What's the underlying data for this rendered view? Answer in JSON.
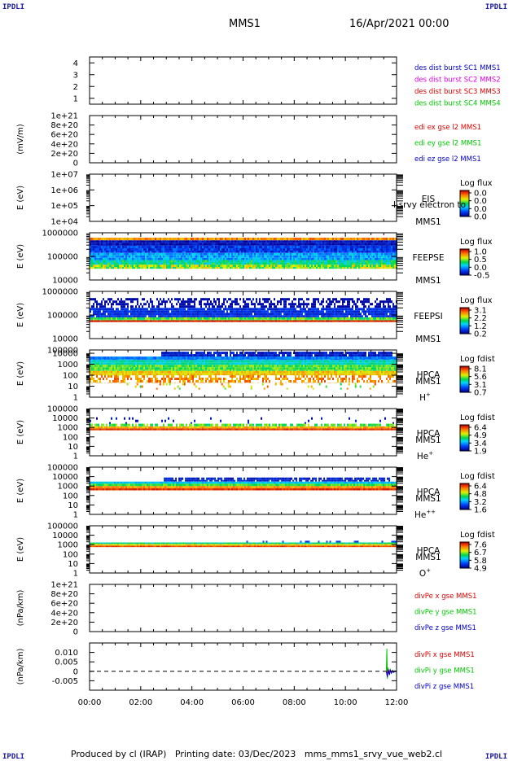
{
  "header": {
    "corner_label": "IPDLI",
    "mission": "MMS1",
    "date": "16/Apr/2021 00:00"
  },
  "footer": {
    "produced_by": "Produced by cl (IRAP)",
    "printing_date": "Printing date: 03/Dec/2023",
    "filename": "mms_mms1_srvy_vue_web2.cl"
  },
  "chart_data": {
    "type": "stacked-timeseries",
    "x_ticks": [
      "00:00",
      "02:00",
      "04:00",
      "06:00",
      "08:00",
      "10:00",
      "12:00"
    ],
    "x_range_hours": [
      0,
      12
    ],
    "panels": [
      {
        "id": "des-dist",
        "type": "line",
        "ylabel": "",
        "yticks": [
          "1",
          "2",
          "3",
          "4"
        ],
        "ylim": [
          0.5,
          4.5
        ],
        "legend": [
          {
            "label": "des dist burst SC1 MMS1",
            "color": "#0000c8"
          },
          {
            "label": "des dist burst SC2 MMS2",
            "color": "#e000e0"
          },
          {
            "label": "des dist burst SC3 MMS3",
            "color": "#e00000"
          },
          {
            "label": "des dist burst SC4 MMS4",
            "color": "#00c800"
          }
        ]
      },
      {
        "id": "edi-e",
        "type": "line",
        "ylabel": "(mV/m)",
        "yticks": [
          "0",
          "2e+20",
          "4e+20",
          "6e+20",
          "8e+20",
          "1e+21"
        ],
        "ylim": [
          0,
          1e+21
        ],
        "zero_line": true,
        "legend": [
          {
            "label": "edi ex gse l2 MMS1",
            "color": "#e00000"
          },
          {
            "label": "edi ey gse l2 MMS1",
            "color": "#00c800"
          },
          {
            "label": "edi ez gse l2 MMS1",
            "color": "#0000c8"
          }
        ]
      },
      {
        "id": "eis",
        "type": "heatmap",
        "ylabel": "E (eV)",
        "yticks": [
          "1e+04",
          "1e+05",
          "1e+06",
          "1e+07"
        ],
        "ylim": [
          10000,
          10000000
        ],
        "log_y": true,
        "labels": [
          "EIS",
          "MMS1"
        ],
        "overlay_label": "l-srvy electron to",
        "colorbar": {
          "title": "Log flux",
          "ticks": [
            "0.0",
            "0.0",
            "0.0",
            "0.0"
          ]
        },
        "bands": []
      },
      {
        "id": "feepse",
        "type": "heatmap",
        "ylabel": "E (eV)",
        "yticks": [
          "10000",
          "100000",
          "1000000"
        ],
        "ylim": [
          10000,
          1000000
        ],
        "log_y": true,
        "labels": [
          "FEEPSE",
          "MMS1"
        ],
        "colorbar": {
          "title": "Log flux",
          "ticks": [
            "1.0",
            "0.5",
            "0.0",
            "-0.5"
          ]
        },
        "bands": [
          {
            "from": 30000,
            "to": 45000,
            "level": 0.6,
            "start": 0,
            "end": 12,
            "noise": 0.15
          },
          {
            "from": 45000,
            "to": 70000,
            "level": 0.45,
            "start": 0,
            "end": 12,
            "noise": 0.12
          },
          {
            "from": 70000,
            "to": 140000,
            "level": 0.3,
            "start": 0,
            "end": 12,
            "noise": 0.1
          },
          {
            "from": 140000,
            "to": 280000,
            "level": 0.15,
            "start": 0,
            "end": 12,
            "noise": 0.1
          },
          {
            "from": 280000,
            "to": 480000,
            "level": 0.05,
            "start": 0,
            "end": 12,
            "noise": 0.08
          },
          {
            "from": 480000,
            "to": 620000,
            "level": 0.8,
            "start": 0,
            "end": 12,
            "noise": 0.1
          }
        ]
      },
      {
        "id": "feepsi",
        "type": "heatmap",
        "ylabel": "E (eV)",
        "yticks": [
          "10000",
          "100000",
          "1000000"
        ],
        "ylim": [
          10000,
          1000000
        ],
        "log_y": true,
        "labels": [
          "FEEPSI",
          "MMS1"
        ],
        "colorbar": {
          "title": "Log flux",
          "ticks": [
            "3.1",
            "2.2",
            "1.2",
            "0.2"
          ]
        },
        "bands": [
          {
            "from": 50000,
            "to": 60000,
            "level": 0.95,
            "start": 0,
            "end": 12,
            "noise": 0.03
          },
          {
            "from": 60000,
            "to": 80000,
            "level": 0.55,
            "start": 0,
            "end": 12,
            "noise": 0.1
          },
          {
            "from": 80000,
            "to": 200000,
            "level": 0.12,
            "start": 0,
            "end": 12,
            "noise": 0.05,
            "sparse": 0.95
          },
          {
            "from": 200000,
            "to": 520000,
            "level": 0.03,
            "start": 0,
            "end": 12,
            "noise": 0.03,
            "sparse": 0.55
          }
        ]
      },
      {
        "id": "hpca-h",
        "type": "heatmap",
        "ylabel": "E (eV)",
        "yticks": [
          "1",
          "10",
          "100",
          "1000",
          "10000"
        ],
        "extra_tick": "100000",
        "ylim": [
          1,
          20000
        ],
        "log_y": true,
        "labels": [
          "HPCA",
          "MMS1",
          "H+"
        ],
        "colorbar": {
          "title": "Log fdist",
          "ticks": [
            "8.1",
            "5.6",
            "3.1",
            "0.7"
          ]
        },
        "bands": [
          {
            "from": 5,
            "to": 20,
            "level": 0.7,
            "start": 1.2,
            "end": 11.8,
            "noise": 0.2,
            "sparse": 0.12
          },
          {
            "from": 20,
            "to": 100,
            "level": 0.8,
            "start": 0,
            "end": 12,
            "noise": 0.1,
            "sparse": 0.55
          },
          {
            "from": 100,
            "to": 250,
            "level": 0.72,
            "start": 0,
            "end": 12,
            "noise": 0.08
          },
          {
            "from": 250,
            "to": 900,
            "level": 0.55,
            "start": 0,
            "end": 12,
            "noise": 0.08
          },
          {
            "from": 900,
            "to": 2500,
            "level": 0.42,
            "start": 0,
            "end": 12,
            "noise": 0.06
          },
          {
            "from": 2500,
            "to": 5000,
            "level": 0.25,
            "start": 0,
            "end": 12,
            "noise": 0.06
          },
          {
            "from": 5000,
            "to": 14000,
            "level": 0.08,
            "start": 2.8,
            "end": 11.8,
            "noise": 0.06,
            "sparse": 0.88
          }
        ]
      },
      {
        "id": "hpca-he",
        "type": "heatmap",
        "ylabel": "E (eV)",
        "yticks": [
          "1",
          "10",
          "100",
          "1000",
          "10000",
          "100000"
        ],
        "ylim": [
          1,
          100000
        ],
        "log_y": true,
        "labels": [
          "HPCA",
          "MMS1",
          "He+"
        ],
        "colorbar": {
          "title": "Log fdist",
          "ticks": [
            "6.4",
            "4.9",
            "3.4",
            "1.9"
          ]
        },
        "bands": [
          {
            "from": 500,
            "to": 800,
            "level": 0.92,
            "start": 0,
            "end": 12,
            "noise": 0.04
          },
          {
            "from": 800,
            "to": 1300,
            "level": 0.75,
            "start": 0,
            "end": 12,
            "noise": 0.08
          },
          {
            "from": 1300,
            "to": 2500,
            "level": 0.55,
            "start": 0,
            "end": 12,
            "noise": 0.1,
            "sparse": 0.7
          },
          {
            "from": 2500,
            "to": 12000,
            "level": 0.05,
            "start": 0,
            "end": 12,
            "noise": 0.05,
            "sparse": 0.06
          }
        ]
      },
      {
        "id": "hpca-hepp",
        "type": "heatmap",
        "ylabel": "E (eV)",
        "yticks": [
          "1",
          "10",
          "100",
          "1000",
          "10000",
          "100000"
        ],
        "ylim": [
          1,
          100000
        ],
        "log_y": true,
        "labels": [
          "HPCA",
          "MMS1",
          "He++"
        ],
        "colorbar": {
          "title": "Log fdist",
          "ticks": [
            "6.4",
            "4.8",
            "3.2",
            "1.6"
          ]
        },
        "bands": [
          {
            "from": 350,
            "to": 600,
            "level": 0.92,
            "start": 0,
            "end": 12,
            "noise": 0.05
          },
          {
            "from": 600,
            "to": 1000,
            "level": 0.8,
            "start": 0,
            "end": 12,
            "noise": 0.06
          },
          {
            "from": 1000,
            "to": 1800,
            "level": 0.55,
            "start": 0,
            "end": 12,
            "noise": 0.06
          },
          {
            "from": 1800,
            "to": 3000,
            "level": 0.35,
            "start": 0,
            "end": 12,
            "noise": 0.06
          },
          {
            "from": 3000,
            "to": 8000,
            "level": 0.08,
            "start": 2.9,
            "end": 11.7,
            "noise": 0.06,
            "sparse": 0.82
          }
        ]
      },
      {
        "id": "hpca-o",
        "type": "heatmap",
        "ylabel": "E (eV)",
        "yticks": [
          "1",
          "10",
          "100",
          "1000",
          "10000",
          "100000"
        ],
        "ylim": [
          1,
          100000
        ],
        "log_y": true,
        "labels": [
          "HPCA",
          "MMS1",
          "O+"
        ],
        "colorbar": {
          "title": "Log fdist",
          "ticks": [
            "7.6",
            "6.7",
            "5.8",
            "4.9"
          ]
        },
        "bands": [
          {
            "from": 550,
            "to": 800,
            "level": 0.9,
            "start": 0,
            "end": 12,
            "noise": 0.05
          },
          {
            "from": 800,
            "to": 1200,
            "level": 0.7,
            "start": 0,
            "end": 12,
            "noise": 0.07
          },
          {
            "from": 1200,
            "to": 1700,
            "level": 0.45,
            "start": 0,
            "end": 12,
            "noise": 0.08
          },
          {
            "from": 1700,
            "to": 2600,
            "level": 0.15,
            "start": 6,
            "end": 12,
            "noise": 0.05,
            "sparse": 0.18
          }
        ]
      },
      {
        "id": "divpe",
        "type": "line",
        "ylabel": "(nPa/km)",
        "yticks": [
          "0",
          "2e+20",
          "4e+20",
          "6e+20",
          "8e+20",
          "1e+21"
        ],
        "ylim": [
          0,
          1e+21
        ],
        "zero_line": true,
        "legend": [
          {
            "label": "divPe x gse MMS1",
            "color": "#e00000"
          },
          {
            "label": "divPe y gse MMS1",
            "color": "#00c800"
          },
          {
            "label": "divPe z gse MMS1",
            "color": "#0000c8"
          }
        ]
      },
      {
        "id": "divpi",
        "type": "line",
        "ylabel": "(nPa/km)",
        "yticks": [
          "-0.005",
          "0",
          "0.005",
          "0.010"
        ],
        "ylim": [
          -0.01,
          0.015
        ],
        "zero_line": true,
        "legend": [
          {
            "label": "divPi x gse MMS1",
            "color": "#e00000"
          },
          {
            "label": "divPi y gse MMS1",
            "color": "#00c800"
          },
          {
            "label": "divPi z gse MMS1",
            "color": "#0000c8"
          }
        ],
        "series": [
          {
            "name": "divPi y gse MMS1",
            "color": "#00c800",
            "x": [
              11.6,
              11.62,
              11.64,
              11.66,
              11.7,
              11.75,
              11.8,
              11.85,
              11.9,
              11.95,
              12.0
            ],
            "y": [
              0,
              0.012,
              -0.004,
              0.002,
              -0.001,
              0.001,
              -0.001,
              0.0005,
              -0.0005,
              0.0003,
              0
            ]
          },
          {
            "name": "divPi x gse MMS1",
            "color": "#e00000",
            "x": [
              11.6,
              11.63,
              11.66,
              11.7,
              11.75,
              11.8,
              11.85,
              11.9,
              11.95,
              12.0
            ],
            "y": [
              0,
              -0.002,
              0.001,
              -0.0008,
              0.0006,
              -0.0004,
              0.0003,
              -0.0002,
              0.0001,
              0
            ]
          },
          {
            "name": "divPi z gse MMS1",
            "color": "#0000c8",
            "x": [
              11.6,
              11.64,
              11.68,
              11.72,
              11.76,
              11.8,
              11.84,
              11.88,
              11.92,
              11.96,
              12.0
            ],
            "y": [
              0,
              -0.003,
              0.001,
              -0.002,
              0.0005,
              -0.001,
              0.0004,
              -0.0006,
              0.0002,
              -0.0002,
              0
            ]
          }
        ]
      }
    ]
  }
}
